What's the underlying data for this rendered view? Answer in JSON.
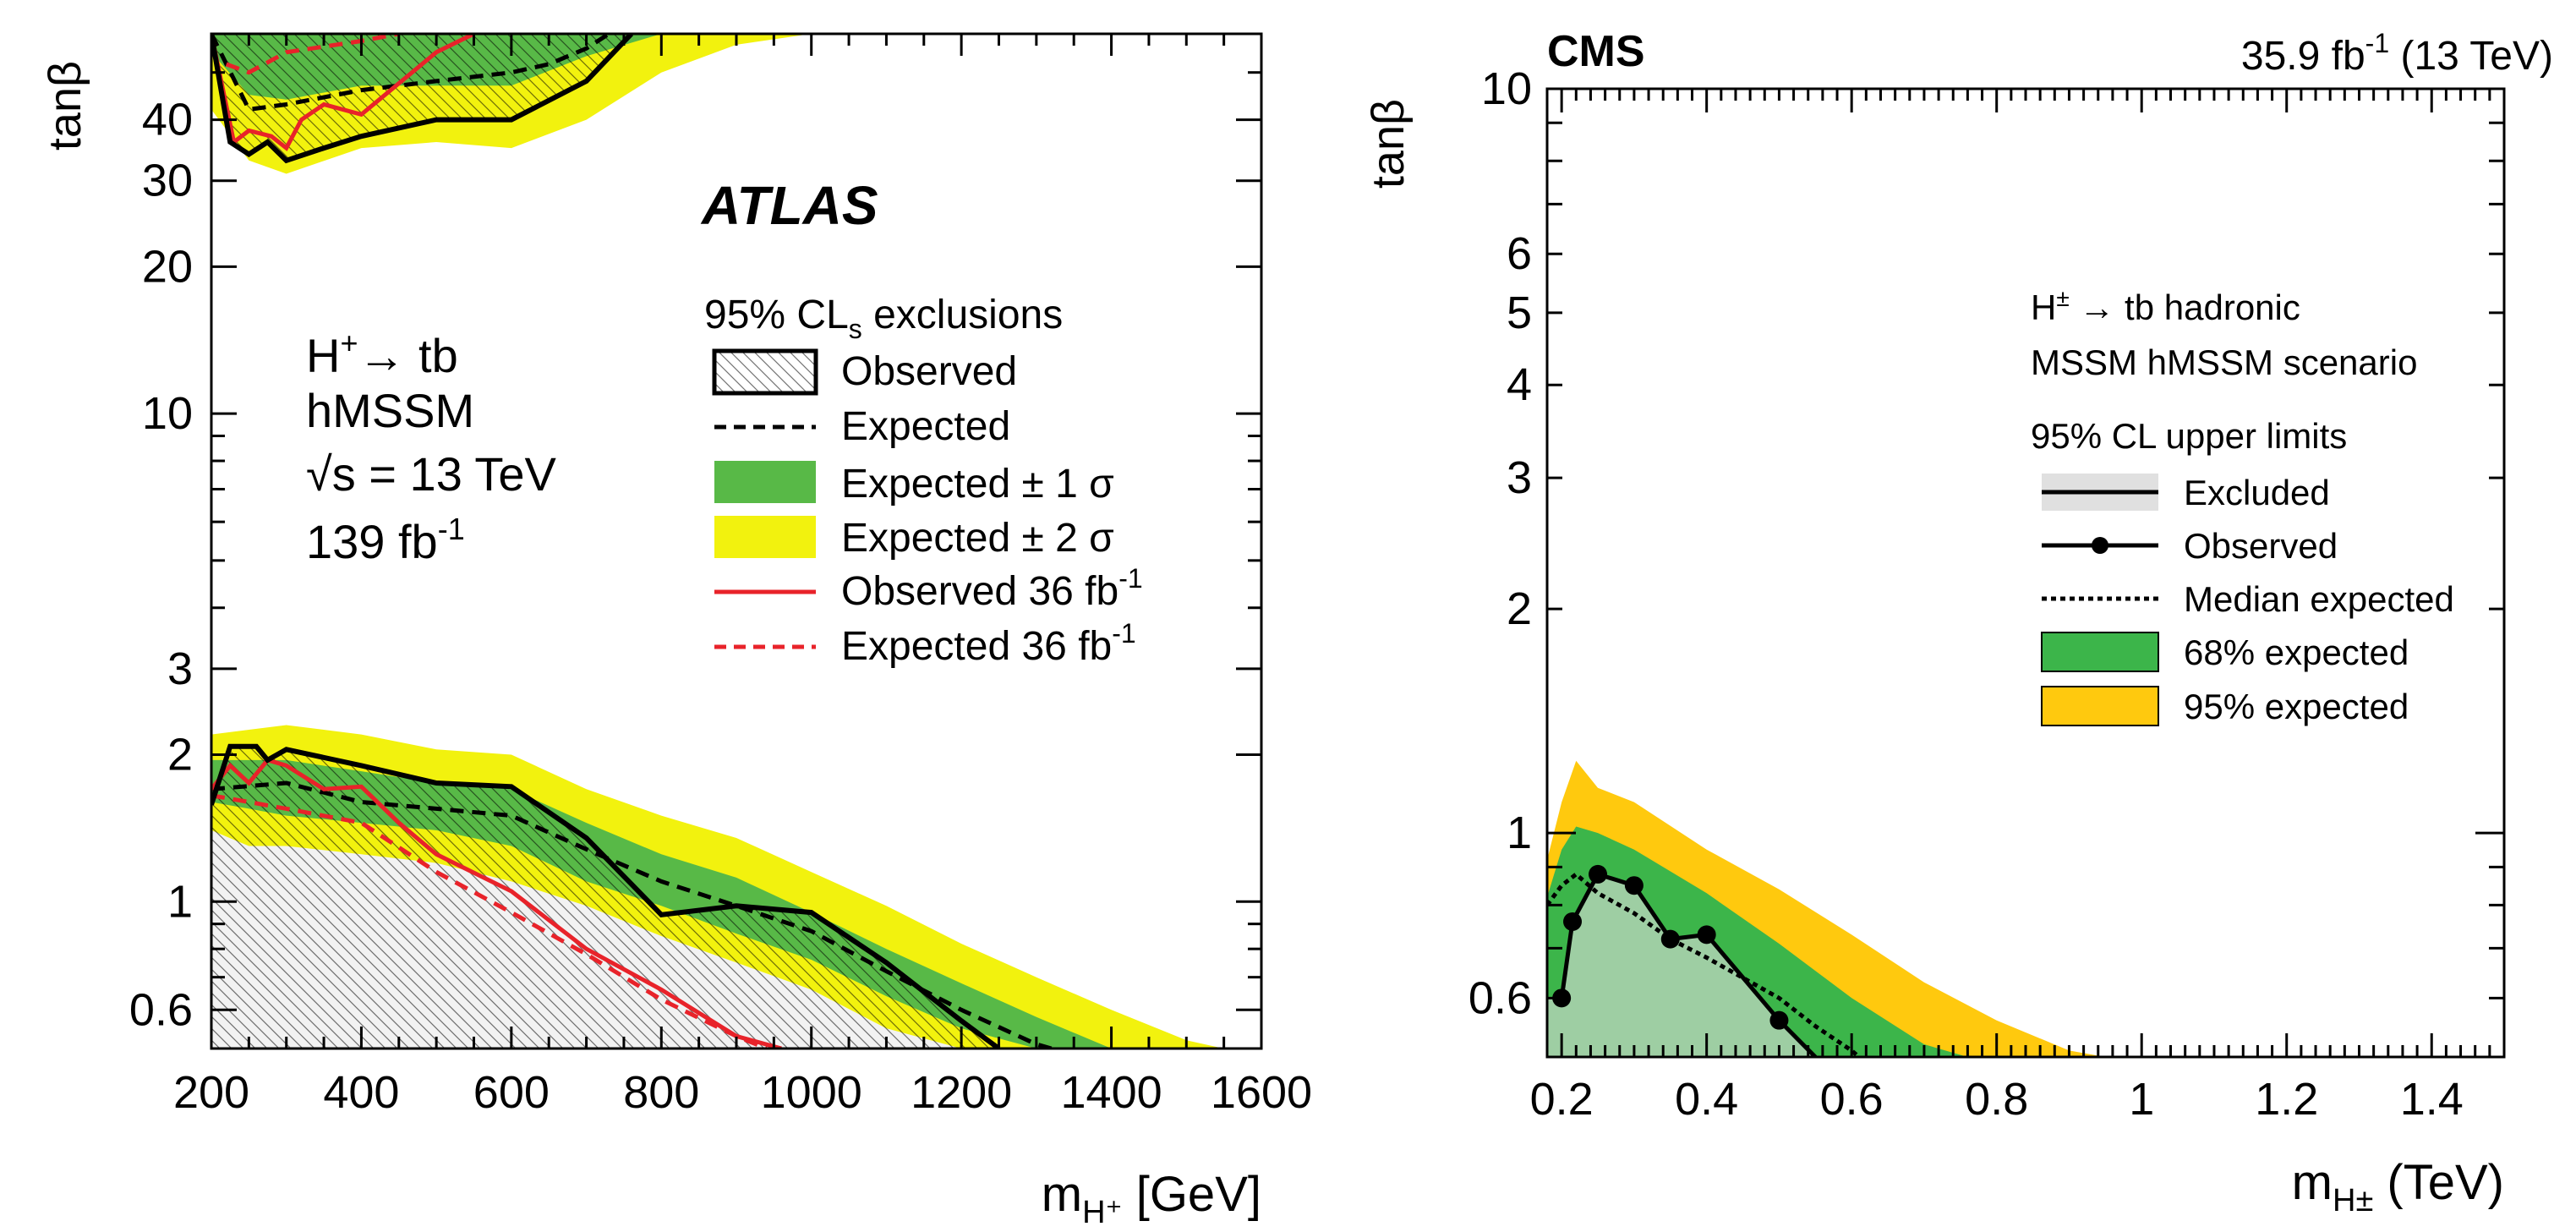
{
  "chart_data": [
    {
      "type": "area",
      "ylabel": "tanβ",
      "xlabel": "m_{H⁺} [GeV]",
      "x_scale": "linear",
      "y_scale": "log",
      "xlim": [
        200,
        1600
      ],
      "ylim": [
        0.5,
        60
      ],
      "x_ticks": [
        200,
        400,
        600,
        800,
        1000,
        1200,
        1400,
        1600
      ],
      "y_ticks": [
        0.6,
        1,
        2,
        3,
        10,
        20,
        30,
        40
      ],
      "y_tick_labels": [
        "0.6",
        "1",
        "2",
        "3",
        "10",
        "20",
        "30",
        "40"
      ],
      "experiment": "ATLAS",
      "process": [
        "H⁺→ tb",
        "hMSSM",
        "√s = 13 TeV",
        "139 fb⁻¹"
      ],
      "legend_title": "95% CLs exclusions",
      "legend": [
        "Observed",
        "Expected",
        "Expected ± 1 σ",
        "Expected ± 2 σ",
        "Observed 36 fb⁻¹",
        "Expected 36 fb⁻¹"
      ],
      "colors": {
        "one_sigma": "#58B947",
        "two_sigma": "#F2F20E",
        "observed_36": "#E8232A",
        "expected_36": "#E8232A",
        "line": "#000000",
        "hatch_bg": "#F2F2F2"
      },
      "low_region": {
        "two_sigma": {
          "x": [
            200,
            250,
            300,
            400,
            500,
            600,
            700,
            800,
            900,
            1000,
            1100,
            1200,
            1300,
            1400,
            1500,
            1550
          ],
          "upper": [
            2.2,
            2.25,
            2.3,
            2.2,
            2.05,
            2.0,
            1.7,
            1.5,
            1.35,
            1.15,
            0.98,
            0.82,
            0.7,
            0.6,
            0.52,
            0.5
          ],
          "lower": [
            1.4,
            1.3,
            1.3,
            1.25,
            1.2,
            1.1,
            0.98,
            0.85,
            0.75,
            0.66,
            0.55,
            0.5,
            0.5,
            0.5,
            0.5,
            0.5
          ]
        },
        "one_sigma": {
          "x": [
            200,
            250,
            300,
            400,
            500,
            600,
            700,
            800,
            900,
            1000,
            1100,
            1200,
            1300,
            1400
          ],
          "upper": [
            1.95,
            1.95,
            1.95,
            1.85,
            1.75,
            1.7,
            1.45,
            1.25,
            1.12,
            0.95,
            0.8,
            0.68,
            0.58,
            0.5
          ],
          "lower": [
            1.6,
            1.55,
            1.5,
            1.45,
            1.4,
            1.3,
            1.1,
            0.98,
            0.86,
            0.76,
            0.64,
            0.55,
            0.5,
            0.5
          ]
        },
        "expected": {
          "x": [
            200,
            300,
            400,
            500,
            600,
            700,
            800,
            900,
            1000,
            1100,
            1200,
            1300,
            1320
          ],
          "y": [
            1.7,
            1.75,
            1.6,
            1.55,
            1.5,
            1.28,
            1.1,
            0.98,
            0.87,
            0.72,
            0.6,
            0.51,
            0.5
          ]
        },
        "observed": {
          "x": [
            200,
            225,
            260,
            275,
            300,
            400,
            500,
            600,
            700,
            800,
            900,
            1000,
            1100,
            1200,
            1250
          ],
          "y": [
            1.58,
            2.08,
            2.08,
            1.95,
            2.05,
            1.9,
            1.75,
            1.72,
            1.35,
            0.94,
            0.98,
            0.95,
            0.75,
            0.57,
            0.5
          ]
        },
        "observed_36": {
          "x": [
            200,
            225,
            250,
            275,
            300,
            350,
            400,
            450,
            500,
            600,
            700,
            800,
            900,
            960
          ],
          "y": [
            1.7,
            1.9,
            1.75,
            1.95,
            1.9,
            1.7,
            1.72,
            1.45,
            1.25,
            1.05,
            0.8,
            0.66,
            0.53,
            0.5
          ]
        },
        "expected_36": {
          "x": [
            200,
            250,
            300,
            400,
            500,
            600,
            700,
            800,
            900,
            940
          ],
          "y": [
            1.65,
            1.6,
            1.55,
            1.45,
            1.15,
            0.95,
            0.78,
            0.63,
            0.53,
            0.5
          ]
        }
      },
      "high_region": {
        "two_sigma": {
          "x": [
            200,
            250,
            300,
            400,
            500,
            600,
            700,
            800,
            900,
            1000
          ],
          "lower": [
            42,
            33,
            31,
            35,
            36,
            35,
            40,
            50,
            57,
            60
          ]
        },
        "one_sigma": {
          "x": [
            200,
            250,
            300,
            400,
            500,
            600,
            700,
            800
          ],
          "lower": [
            55,
            45,
            44,
            47,
            47,
            47,
            54,
            60
          ]
        },
        "expected": {
          "x": [
            200,
            250,
            300,
            400,
            500,
            600,
            650,
            700,
            730
          ],
          "y": [
            60,
            42,
            43,
            46,
            48,
            50,
            52,
            56,
            60
          ]
        },
        "observed": {
          "x": [
            200,
            225,
            250,
            275,
            300,
            350,
            400,
            500,
            600,
            700,
            760
          ],
          "y": [
            60,
            36,
            34,
            36,
            33,
            35,
            37,
            40,
            40,
            48,
            60
          ]
        },
        "observed_36": {
          "x": [
            200,
            230,
            250,
            280,
            300,
            320,
            350,
            400,
            500,
            550
          ],
          "y": [
            60,
            36,
            38,
            37,
            35,
            40,
            43,
            41,
            55,
            60
          ]
        },
        "expected_36": {
          "x": [
            220,
            250,
            300,
            400,
            450
          ],
          "y": [
            52,
            50,
            55,
            58,
            60
          ]
        }
      }
    },
    {
      "type": "area",
      "ylabel": "tanβ",
      "xlabel": "m_{H±} (TeV)",
      "x_scale": "linear",
      "y_scale": "log",
      "xlim": [
        0.18,
        1.5
      ],
      "ylim": [
        0.5,
        10
      ],
      "x_ticks": [
        0.2,
        0.4,
        0.6,
        0.8,
        1.0,
        1.2,
        1.4
      ],
      "x_tick_labels": [
        "0.2",
        "0.4",
        "0.6",
        "0.8",
        "1",
        "1.2",
        "1.4"
      ],
      "y_ticks": [
        0.6,
        1,
        2,
        3,
        4,
        5,
        6,
        10
      ],
      "y_tick_labels": [
        "0.6",
        "1",
        "2",
        "3",
        "4",
        "5",
        "6",
        "10"
      ],
      "experiment": "CMS",
      "lumi_label": "35.9 fb⁻¹ (13 TeV)",
      "process": [
        "H± → tb hadronic",
        "MSSM hMSSM scenario"
      ],
      "legend_title": "95% CL upper limits",
      "legend": [
        "Excluded",
        "Observed",
        "Median expected",
        "68% expected",
        "95% expected"
      ],
      "colors": {
        "one_sigma": "#3CB54A",
        "two_sigma": "#FFC90E",
        "line": "#000000",
        "excluded": "#E0E0E0"
      },
      "two_sigma": {
        "x": [
          0.18,
          0.2,
          0.22,
          0.25,
          0.3,
          0.4,
          0.5,
          0.6,
          0.7,
          0.8,
          0.9,
          0.95
        ],
        "upper": [
          0.92,
          1.1,
          1.25,
          1.15,
          1.1,
          0.95,
          0.84,
          0.73,
          0.63,
          0.56,
          0.51,
          0.5
        ]
      },
      "one_sigma": {
        "x": [
          0.18,
          0.2,
          0.22,
          0.25,
          0.3,
          0.4,
          0.5,
          0.6,
          0.7,
          0.76
        ],
        "upper": [
          0.82,
          0.95,
          1.02,
          1.0,
          0.95,
          0.83,
          0.71,
          0.6,
          0.52,
          0.5
        ]
      },
      "expected": {
        "x": [
          0.18,
          0.2,
          0.22,
          0.25,
          0.3,
          0.35,
          0.4,
          0.5,
          0.55,
          0.6,
          0.61
        ],
        "y": [
          0.8,
          0.85,
          0.88,
          0.83,
          0.78,
          0.72,
          0.68,
          0.6,
          0.55,
          0.51,
          0.5
        ]
      },
      "observed": {
        "x": [
          0.2,
          0.215,
          0.25,
          0.3,
          0.35,
          0.4,
          0.5,
          0.55
        ],
        "y": [
          0.6,
          0.76,
          0.88,
          0.85,
          0.72,
          0.73,
          0.56,
          0.5
        ]
      },
      "observed_points": {
        "x": [
          0.2,
          0.215,
          0.25,
          0.3,
          0.35,
          0.4,
          0.5
        ],
        "y": [
          0.6,
          0.76,
          0.88,
          0.85,
          0.72,
          0.73,
          0.56
        ]
      },
      "excluded": {
        "x": [
          0.18,
          0.2,
          0.215,
          0.25,
          0.3,
          0.35,
          0.4,
          0.5,
          0.55
        ],
        "upper": [
          0.6,
          0.6,
          0.76,
          0.88,
          0.85,
          0.72,
          0.73,
          0.56,
          0.5
        ]
      }
    }
  ]
}
